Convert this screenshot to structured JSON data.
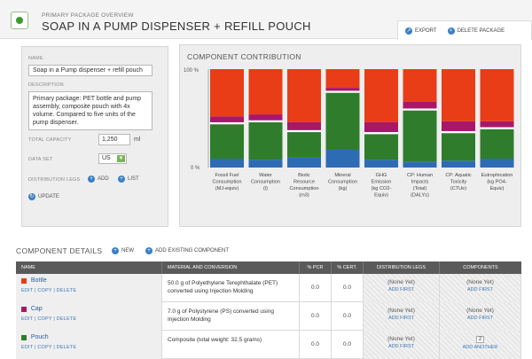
{
  "header": {
    "overview_label": "PRIMARY PACKAGE OVERVIEW",
    "title": "SOAP IN A PUMP DISPENSER + REFILL POUCH",
    "export_label": "EXPORT",
    "delete_label": "DELETE PACKAGE"
  },
  "details": {
    "name_label": "NAME",
    "name_value": "Soap in a Pump dispenser + refill pouch",
    "description_label": "DESCRIPTION",
    "description_value": "Primary package: PET bottle and pump assembly, composite pouch with 4x volume. Compared to five units of the pump dispenser.",
    "capacity_label": "TOTAL CAPACITY",
    "capacity_value": "1,250",
    "capacity_unit": "ml",
    "dataset_label": "DATA SET",
    "dataset_value": "US",
    "dist_legs_label": "DISTRIBUTION LEGS",
    "add_label": "ADD",
    "list_label": "LIST",
    "update_label": "UPDATE"
  },
  "chart": {
    "title": "COMPONENT CONTRIBUTION"
  },
  "chart_data": {
    "type": "bar",
    "stacked": true,
    "percent": true,
    "title": "COMPONENT CONTRIBUTION",
    "ytick_labels": [
      "100 %",
      "0 %"
    ],
    "ylim": [
      0,
      100
    ],
    "categories": [
      [
        "Fossil Fuel",
        "Consumption",
        "(MJ-equiv)"
      ],
      [
        "Water",
        "Consumption",
        "(l)"
      ],
      [
        "Biotic",
        "Resource",
        "Consumption",
        "(m3)"
      ],
      [
        "Mineral",
        "Consumption",
        "(kg)"
      ],
      [
        "GHG",
        "Emission",
        "(kg CO2-",
        "Equiv)"
      ],
      [
        "CP: Human",
        "Impacts",
        "(Total)",
        "(DALYs)"
      ],
      [
        "CP: Aquatic",
        "Toxicity",
        "(CTUe)"
      ],
      [
        "Eutrophication",
        "(kg PO4-",
        "Equiv)"
      ]
    ],
    "series": [
      {
        "color": "#2e6bb5",
        "values": [
          9,
          8,
          10,
          18,
          8,
          6,
          7,
          9
        ]
      },
      {
        "color": "#2f7d2c",
        "values": [
          35,
          38,
          26,
          58,
          26,
          52,
          28,
          30
        ]
      },
      {
        "color": "#ffffff",
        "values": [
          2,
          2,
          2,
          2,
          2,
          2,
          2,
          2
        ]
      },
      {
        "color": "#a8176a",
        "values": [
          6,
          6,
          8,
          3,
          10,
          7,
          10,
          6
        ]
      },
      {
        "color": "#e83d17",
        "values": [
          48,
          46,
          54,
          19,
          54,
          33,
          53,
          53
        ]
      }
    ]
  },
  "components": {
    "title": "COMPONENT DETAILS",
    "new_label": "NEW",
    "add_existing_label": "ADD EXISTING COMPONENT",
    "columns": [
      "NAME",
      "MATERIAL AND CONVERSION",
      "% PCR",
      "% CERT.",
      "DISTRIBUTION LEGS",
      "COMPONENTS"
    ],
    "link_labels": "EDIT  |  COPY  |  DELETE",
    "rows": [
      {
        "name": "Bottle",
        "color": "#e83d17",
        "material": "50.0 g of Polyethylene Terephthalate (PET) converted using Injection Molding",
        "pcr": "0.0",
        "cert": "0.0",
        "dist": "(None Yet)",
        "dist_action": "ADD FIRST",
        "comp": "(None Yet)",
        "comp_action": "ADD FIRST"
      },
      {
        "name": "Cap",
        "color": "#a8176a",
        "material": "7.0 g of Polystyrene (PS) converted using Injection Molding",
        "pcr": "0.0",
        "cert": "0.0",
        "dist": "(None Yet)",
        "dist_action": "ADD FIRST",
        "comp": "(None Yet)",
        "comp_action": "ADD FIRST"
      },
      {
        "name": "Pouch",
        "color": "#2f7d2c",
        "material": "Composite (total weight: 32.5 grams)",
        "pcr": "0.0",
        "cert": "0.0",
        "dist": "(None Yet)",
        "dist_action": "ADD FIRST",
        "comp": "2",
        "comp_action": "ADD ANOTHER"
      }
    ]
  }
}
